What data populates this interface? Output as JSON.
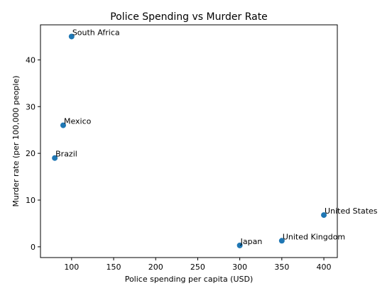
{
  "chart_data": {
    "type": "scatter",
    "title": "Police Spending vs Murder Rate",
    "xlabel": "Police spending per capita (USD)",
    "ylabel": "Murder rate (per 100,000 people)",
    "xlim": [
      63,
      416
    ],
    "ylim": [
      -2.3,
      47.5
    ],
    "xticks": [
      100,
      150,
      200,
      250,
      300,
      350,
      400
    ],
    "yticks": [
      0,
      10,
      20,
      30,
      40
    ],
    "grid": false,
    "marker_color": "#1f77b4",
    "points": [
      {
        "label": "South Africa",
        "x": 100,
        "y": 45.0
      },
      {
        "label": "Mexico",
        "x": 90,
        "y": 26.0
      },
      {
        "label": "Brazil",
        "x": 80,
        "y": 19.0
      },
      {
        "label": "United States",
        "x": 400,
        "y": 6.8
      },
      {
        "label": "United Kingdom",
        "x": 350,
        "y": 1.3
      },
      {
        "label": "Japan",
        "x": 300,
        "y": 0.3
      }
    ]
  }
}
